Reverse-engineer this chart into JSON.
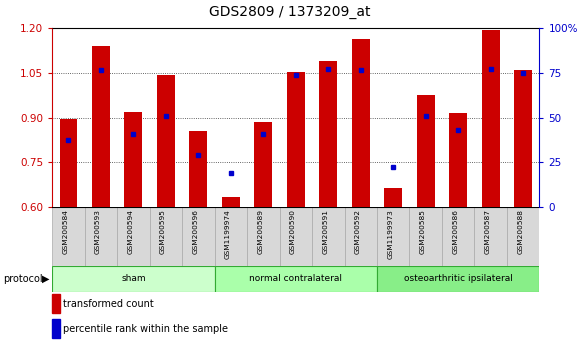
{
  "title": "GDS2809 / 1373209_at",
  "samples": [
    "GSM200584",
    "GSM200593",
    "GSM200594",
    "GSM200595",
    "GSM200596",
    "GSM1199974",
    "GSM200589",
    "GSM200590",
    "GSM200591",
    "GSM200592",
    "GSM1199973",
    "GSM200585",
    "GSM200586",
    "GSM200587",
    "GSM200588"
  ],
  "red_values": [
    0.895,
    1.14,
    0.92,
    1.045,
    0.855,
    0.635,
    0.885,
    1.055,
    1.09,
    1.165,
    0.665,
    0.975,
    0.915,
    1.195,
    1.06
  ],
  "blue_values": [
    0.825,
    1.06,
    0.845,
    0.905,
    0.775,
    0.715,
    0.845,
    1.045,
    1.065,
    1.06,
    0.735,
    0.905,
    0.86,
    1.065,
    1.05
  ],
  "groups": [
    {
      "label": "sham",
      "start": 0,
      "end": 5,
      "color": "#ccffcc"
    },
    {
      "label": "normal contralateral",
      "start": 5,
      "end": 10,
      "color": "#aaffaa"
    },
    {
      "label": "osteoarthritic ipsilateral",
      "start": 10,
      "end": 15,
      "color": "#88ee88"
    }
  ],
  "ylim_left": [
    0.6,
    1.2
  ],
  "ylim_right": [
    0,
    100
  ],
  "left_color": "#cc0000",
  "right_color": "#0000cc",
  "bar_color": "#cc0000",
  "dot_color": "#0000cc",
  "yticks_left": [
    0.6,
    0.75,
    0.9,
    1.05,
    1.2
  ],
  "yticks_right": [
    0,
    25,
    50,
    75,
    100
  ],
  "bar_width": 0.55
}
